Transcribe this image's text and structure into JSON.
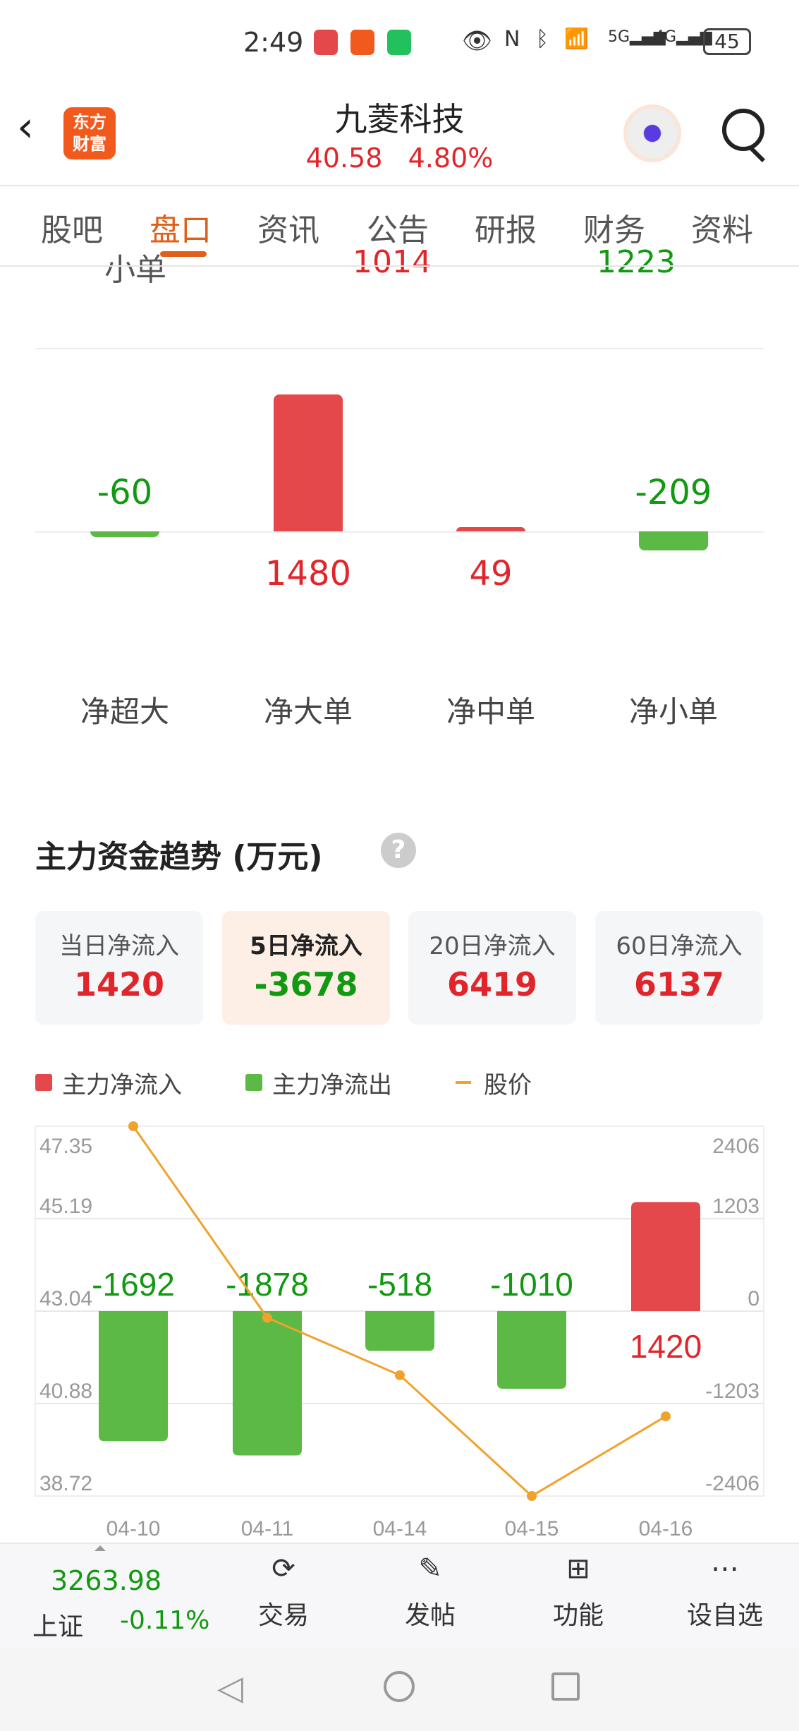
{
  "status_bar": {
    "time": "2:49",
    "battery": "45",
    "icons": [
      "book-app-icon",
      "kuaishou-icon",
      "wechat-icon",
      "eye-icon",
      "nfc-icon",
      "bluetooth-icon",
      "wifi-6-icon",
      "5g-signal-icon",
      "4g-signal-icon",
      "battery-icon"
    ]
  },
  "header": {
    "logo": "东方财富",
    "title": "九菱科技",
    "price": "40.58",
    "change": "4.80%"
  },
  "tabs": [
    {
      "label": "股吧"
    },
    {
      "label": "盘口",
      "active": true
    },
    {
      "label": "资讯"
    },
    {
      "label": "公告"
    },
    {
      "label": "研报"
    },
    {
      "label": "财务"
    },
    {
      "label": "资料"
    }
  ],
  "clipped_row": {
    "label": "小单",
    "in": "1014",
    "out": "1223"
  },
  "net_flow": {
    "categories": [
      "净超大",
      "净大单",
      "净中单",
      "净小单"
    ],
    "values": [
      -60,
      1480,
      49,
      -209
    ],
    "labels": [
      "-60",
      "1480",
      "49",
      "-209"
    ]
  },
  "trend": {
    "title": "主力资金趋势 (万元)",
    "cards": [
      {
        "label": "当日净流入",
        "value": "1420",
        "color": "red"
      },
      {
        "label": "5日净流入",
        "value": "-3678",
        "color": "green",
        "selected": true
      },
      {
        "label": "20日净流入",
        "value": "6419",
        "color": "red"
      },
      {
        "label": "60日净流入",
        "value": "6137",
        "color": "red"
      }
    ],
    "legend": [
      {
        "label": "主力净流入",
        "color": "#e5484a"
      },
      {
        "label": "主力净流出",
        "color": "#5cb946"
      },
      {
        "label": "股价",
        "color": "#f0a22c"
      }
    ]
  },
  "chart_data": {
    "type": "bar+line",
    "categories": [
      "04-10",
      "04-11",
      "04-14",
      "04-15",
      "04-16"
    ],
    "series": [
      {
        "name": "主力净流入/流出",
        "values": [
          -1692,
          -1878,
          -518,
          -1010,
          1420
        ],
        "labels": [
          "-1692",
          "-1878",
          "-518",
          "-1010",
          "1420"
        ]
      },
      {
        "name": "股价",
        "values": [
          47.35,
          42.88,
          41.54,
          38.72,
          40.58
        ]
      }
    ],
    "left_ticks": [
      "47.35",
      "45.19",
      "43.04",
      "40.88",
      "38.72"
    ],
    "left_ylim": [
      38.72,
      47.35
    ],
    "right_ticks": [
      "2406",
      "1203",
      "0",
      "-1203",
      "-2406"
    ],
    "right_ylim": [
      -2406,
      2406
    ],
    "grid": true
  },
  "bottom_bar": {
    "index_value": "3263.98",
    "index_name": "上证",
    "index_change": "-0.11%",
    "items": [
      {
        "label": "交易",
        "icon": "yen-exchange-icon"
      },
      {
        "label": "发帖",
        "icon": "edit-icon"
      },
      {
        "label": "功能",
        "icon": "grid-icon"
      },
      {
        "label": "设自选",
        "icon": "more-icon"
      }
    ]
  },
  "colors": {
    "up": "#e0262b",
    "down": "#119a11",
    "accent": "#e0601a"
  }
}
